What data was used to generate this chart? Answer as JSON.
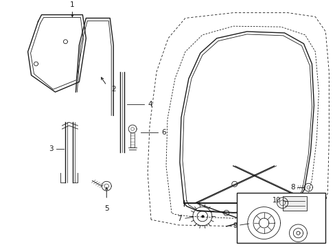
{
  "bg_color": "#ffffff",
  "line_color": "#1a1a1a",
  "label_color": "#111111",
  "fs": 7.5,
  "lw_thin": 0.6,
  "lw_med": 1.0,
  "lw_thick": 1.4
}
